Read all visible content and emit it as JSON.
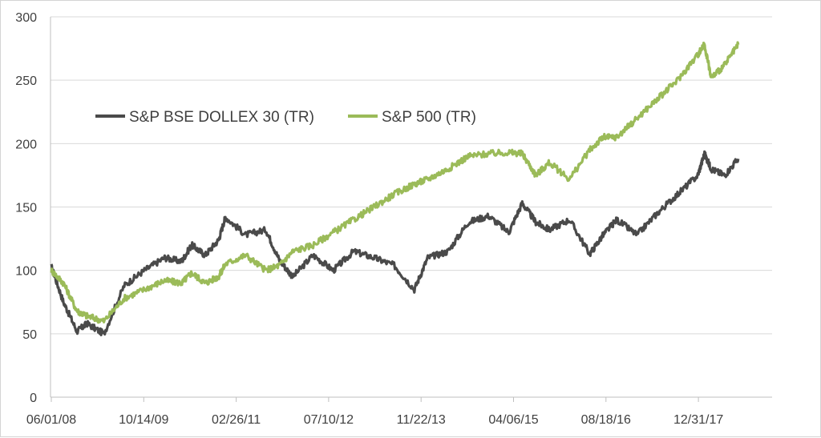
{
  "chart_data": {
    "type": "line",
    "title": "",
    "xlabel": "",
    "ylabel": "",
    "ylim": [
      0,
      300
    ],
    "yticks": [
      0,
      50,
      100,
      150,
      200,
      250,
      300
    ],
    "xticks": [
      "06/01/08",
      "10/14/09",
      "02/26/11",
      "07/10/12",
      "11/22/13",
      "04/06/15",
      "08/18/16",
      "12/31/17"
    ],
    "grid": "horizontal",
    "legend": "upper-left",
    "x_years": [
      2008.42,
      2008.6,
      2008.8,
      2008.95,
      2009.2,
      2009.5,
      2009.8,
      2010.1,
      2010.35,
      2010.5,
      2010.7,
      2010.9,
      2011.0,
      2011.3,
      2011.6,
      2011.8,
      2012.0,
      2012.3,
      2012.6,
      2012.9,
      2013.2,
      2013.5,
      2013.8,
      2014.0,
      2014.3,
      2014.6,
      2014.9,
      2015.2,
      2015.4,
      2015.6,
      2015.8,
      2016.1,
      2016.4,
      2016.6,
      2016.8,
      2017.1,
      2017.4,
      2017.7,
      2018.0,
      2018.1,
      2018.2,
      2018.4,
      2018.6
    ],
    "series": [
      {
        "name": "S&P BSE DOLLEX 30 (TR)",
        "color": "#4a4a4a",
        "values": [
          103,
          75,
          52,
          58,
          50,
          88,
          100,
          110,
          107,
          120,
          112,
          124,
          142,
          128,
          132,
          108,
          95,
          112,
          100,
          115,
          110,
          104,
          85,
          110,
          115,
          138,
          143,
          130,
          153,
          138,
          132,
          140,
          113,
          128,
          140,
          128,
          145,
          160,
          175,
          192,
          180,
          175,
          188
        ]
      },
      {
        "name": "S&P 500 (TR)",
        "color": "#9bbb59",
        "values": [
          100,
          90,
          68,
          64,
          60,
          78,
          85,
          92,
          90,
          98,
          90,
          95,
          105,
          112,
          100,
          104,
          115,
          120,
          130,
          140,
          150,
          160,
          168,
          172,
          180,
          190,
          192,
          193,
          192,
          175,
          185,
          172,
          195,
          205,
          205,
          220,
          235,
          250,
          270,
          278,
          252,
          262,
          278
        ]
      }
    ]
  }
}
